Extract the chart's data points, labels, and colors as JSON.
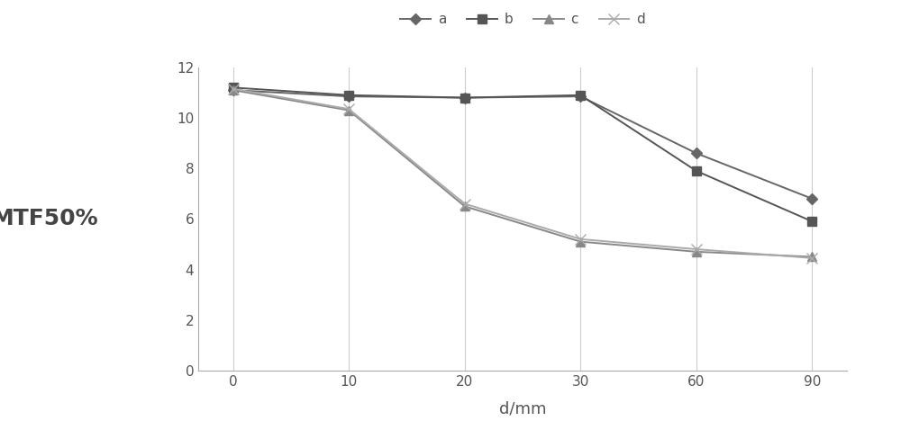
{
  "x_positions": [
    0,
    1,
    2,
    3,
    4,
    5
  ],
  "x_labels": [
    "0",
    "10",
    "20",
    "30",
    "60",
    "90"
  ],
  "series": {
    "a": [
      11.1,
      10.85,
      10.8,
      10.85,
      8.6,
      6.8
    ],
    "b": [
      11.2,
      10.9,
      10.8,
      10.9,
      7.9,
      5.9
    ],
    "c": [
      11.1,
      10.3,
      6.5,
      5.1,
      4.7,
      4.5
    ],
    "d": [
      11.15,
      10.35,
      6.6,
      5.2,
      4.8,
      4.45
    ]
  },
  "colors": {
    "a": "#666666",
    "b": "#555555",
    "c": "#888888",
    "d": "#aaaaaa"
  },
  "markers": {
    "a": "D",
    "b": "s",
    "c": "^",
    "d": "x"
  },
  "markersizes": {
    "a": 6,
    "b": 7,
    "c": 7,
    "d": 8
  },
  "xlabel": "d/mm",
  "ylabel": "MTF50%",
  "ylim": [
    0,
    12
  ],
  "yticks": [
    0,
    2,
    4,
    6,
    8,
    10,
    12
  ],
  "background_color": "#ffffff",
  "grid_color": "#cccccc",
  "tick_fontsize": 11,
  "legend_fontsize": 11,
  "linewidth": 1.4,
  "ylabel_fontsize": 18,
  "xlabel_fontsize": 13
}
